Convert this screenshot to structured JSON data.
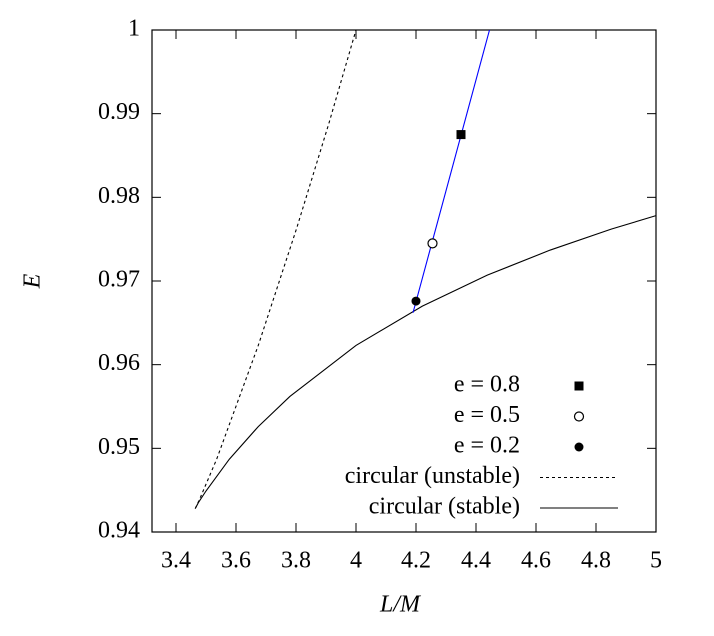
{
  "chart_data": {
    "type": "line",
    "xlabel": "L/M",
    "ylabel": "E",
    "xlim": [
      3.32,
      5
    ],
    "ylim": [
      0.94,
      1
    ],
    "xticks": [
      3.4,
      3.6,
      3.8,
      4,
      4.2,
      4.4,
      4.6,
      4.8,
      5
    ],
    "yticks": [
      0.94,
      0.95,
      0.96,
      0.97,
      0.98,
      0.99,
      1
    ],
    "legend": "lower right",
    "series": [
      {
        "name": "e = 0.8",
        "style": "square",
        "color": "#000000",
        "x": [
          4.35
        ],
        "y": [
          0.9875
        ]
      },
      {
        "name": "e = 0.5",
        "style": "open-circle",
        "color": "#000000",
        "x": [
          4.255
        ],
        "y": [
          0.9745
        ]
      },
      {
        "name": "e = 0.2",
        "style": "filled-circle",
        "color": "#000000",
        "x": [
          4.2
        ],
        "y": [
          0.9676
        ]
      },
      {
        "name": "circular (unstable)",
        "style": "dashed",
        "color": "#000000",
        "x": [
          3.4641,
          3.4785,
          3.5355,
          3.6742,
          3.8013,
          3.9093,
          4
        ],
        "y": [
          0.9428,
          0.9439,
          0.9487,
          0.9623,
          0.9762,
          0.9888,
          1
        ]
      },
      {
        "name": "circular (stable)",
        "style": "solid",
        "color": "#000000",
        "x": [
          3.4641,
          3.4744,
          3.5,
          3.5777,
          3.6742,
          3.7796,
          4,
          4.2212,
          4.4376,
          4.6476,
          4.8507,
          4.9986
        ],
        "y": [
          0.9428,
          0.9435,
          0.9449,
          0.9487,
          0.9526,
          0.9562,
          0.9623,
          0.967,
          0.9707,
          0.9737,
          0.9762,
          0.9778
        ]
      },
      {
        "style": "solid",
        "color": "#0000ff",
        "x": [
          4.19,
          4.445
        ],
        "y": [
          0.9662,
          1
        ]
      }
    ]
  }
}
